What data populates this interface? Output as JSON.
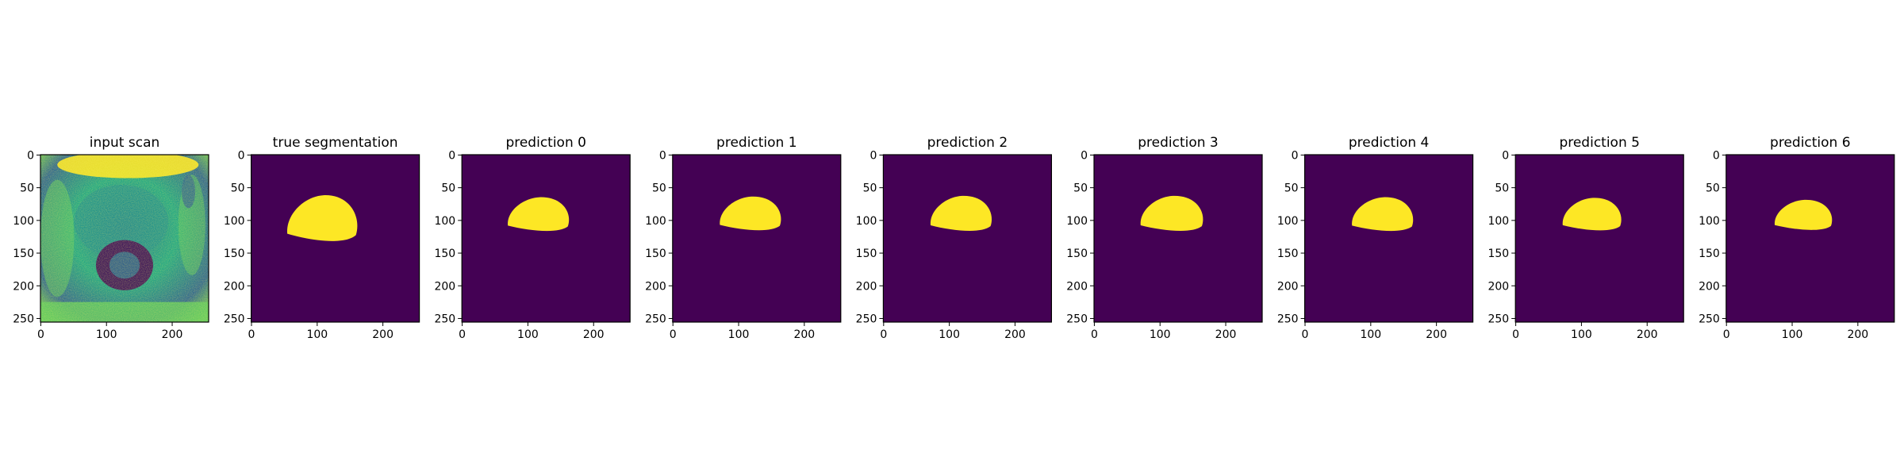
{
  "figure": {
    "panels": [
      {
        "title": "input scan",
        "kind": "scan"
      },
      {
        "title": "true segmentation",
        "kind": "mask",
        "mask": {
          "cx": 110,
          "cy": 100,
          "rx": 55,
          "ry": 38
        }
      },
      {
        "title": "prediction 0",
        "kind": "mask",
        "mask": {
          "cx": 118,
          "cy": 93,
          "rx": 48,
          "ry": 28
        }
      },
      {
        "title": "prediction 1",
        "kind": "mask",
        "mask": {
          "cx": 120,
          "cy": 92,
          "rx": 48,
          "ry": 28
        }
      },
      {
        "title": "prediction 2",
        "kind": "mask",
        "mask": {
          "cx": 120,
          "cy": 92,
          "rx": 48,
          "ry": 29
        }
      },
      {
        "title": "prediction 3",
        "kind": "mask",
        "mask": {
          "cx": 120,
          "cy": 92,
          "rx": 49,
          "ry": 29
        }
      },
      {
        "title": "prediction 4",
        "kind": "mask",
        "mask": {
          "cx": 120,
          "cy": 93,
          "rx": 48,
          "ry": 28
        }
      },
      {
        "title": "prediction 5",
        "kind": "mask",
        "mask": {
          "cx": 118,
          "cy": 93,
          "rx": 46,
          "ry": 27
        }
      },
      {
        "title": "prediction 6",
        "kind": "mask",
        "mask": {
          "cx": 119,
          "cy": 94,
          "rx": 45,
          "ry": 25
        }
      }
    ],
    "x_ticks": [
      0,
      100,
      200
    ],
    "y_ticks": [
      0,
      50,
      100,
      150,
      200,
      250
    ],
    "image_size": 256,
    "colors": {
      "background": "#440154",
      "foreground": "#fde725",
      "scan_dark": "#31688e",
      "scan_mid": "#21918c",
      "scan_light": "#5ec962",
      "scan_bright": "#fde725"
    }
  }
}
